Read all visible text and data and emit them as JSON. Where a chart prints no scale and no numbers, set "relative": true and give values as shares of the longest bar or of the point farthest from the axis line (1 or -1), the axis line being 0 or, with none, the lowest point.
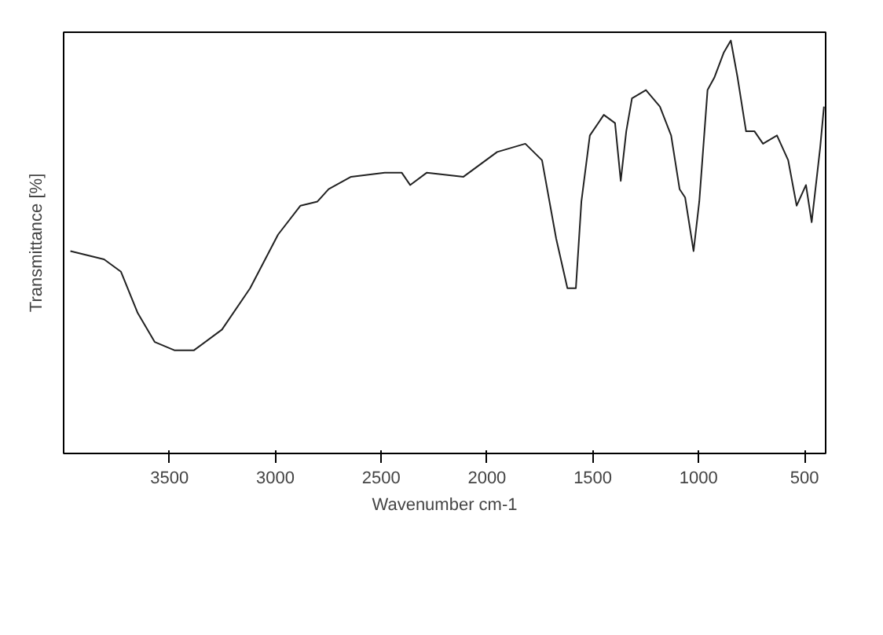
{
  "chart_data": {
    "type": "line",
    "xlabel": "Wavenumber cm-1",
    "ylabel": "Transmittance [%]",
    "relative": true,
    "xlim": [
      4000,
      400
    ],
    "xticks": [
      3500,
      3000,
      2500,
      2000,
      1500,
      1000,
      500
    ],
    "grid": false,
    "x": [
      3968,
      3809,
      3729,
      3650,
      3570,
      3477,
      3384,
      3252,
      3119,
      2987,
      2881,
      2801,
      2748,
      2642,
      2483,
      2403,
      2363,
      2284,
      2111,
      1952,
      1819,
      1740,
      1673,
      1620,
      1580,
      1554,
      1514,
      1448,
      1395,
      1368,
      1342,
      1315,
      1249,
      1183,
      1130,
      1090,
      1064,
      1024,
      997,
      958,
      926,
      882,
      848,
      816,
      776,
      736,
      696,
      630,
      577,
      537,
      493,
      466,
      426,
      408
    ],
    "series": [
      {
        "color": "#222222",
        "values": [
          0.49,
          0.47,
          0.44,
          0.34,
          0.27,
          0.25,
          0.25,
          0.3,
          0.4,
          0.53,
          0.6,
          0.61,
          0.64,
          0.67,
          0.68,
          0.68,
          0.65,
          0.68,
          0.67,
          0.73,
          0.75,
          0.71,
          0.52,
          0.4,
          0.4,
          0.61,
          0.77,
          0.82,
          0.8,
          0.66,
          0.78,
          0.86,
          0.88,
          0.84,
          0.77,
          0.64,
          0.62,
          0.49,
          0.61,
          0.88,
          0.91,
          0.97,
          1.0,
          0.91,
          0.78,
          0.78,
          0.75,
          0.77,
          0.71,
          0.6,
          0.65,
          0.56,
          0.74,
          0.84
        ]
      }
    ]
  }
}
